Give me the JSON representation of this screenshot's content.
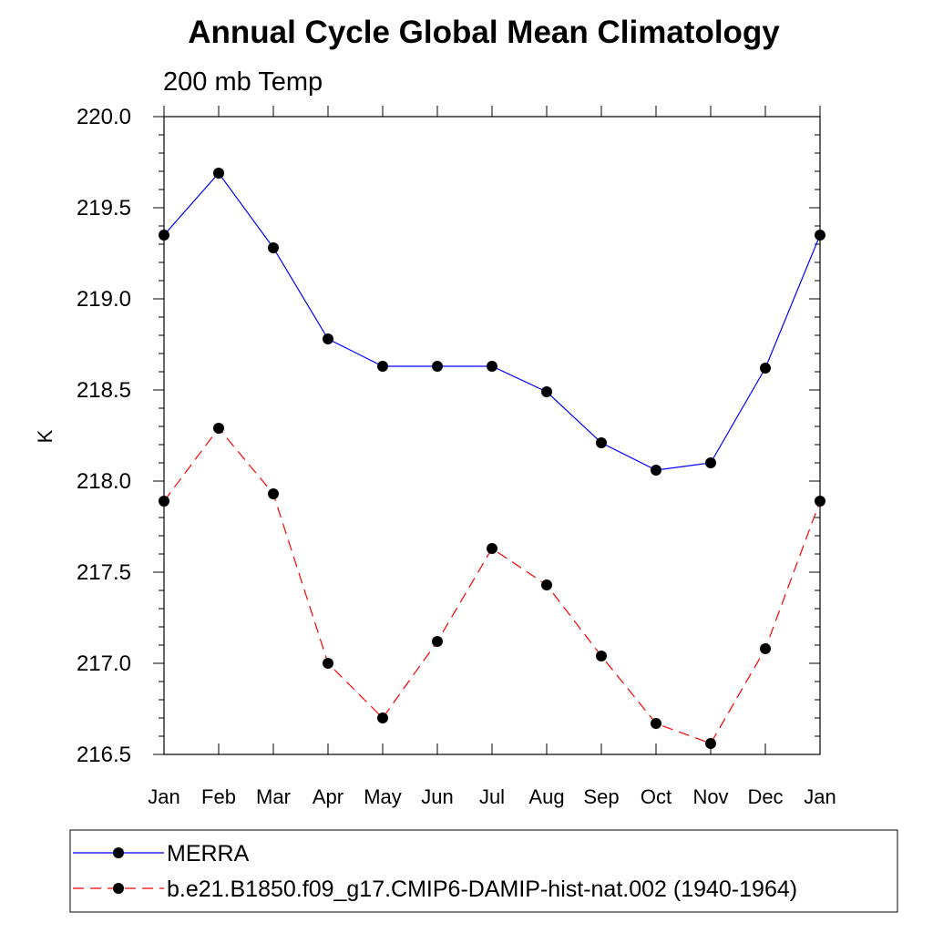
{
  "chart_data": {
    "type": "line",
    "title": "Annual Cycle Global Mean Climatology",
    "subtitle": "200 mb Temp",
    "xlabel": "",
    "ylabel": "K",
    "categories": [
      "Jan",
      "Feb",
      "Mar",
      "Apr",
      "May",
      "Jun",
      "Jul",
      "Aug",
      "Sep",
      "Oct",
      "Nov",
      "Dec",
      "Jan"
    ],
    "ylim": [
      216.5,
      220.0
    ],
    "yticks": [
      216.5,
      217.0,
      217.5,
      218.0,
      218.5,
      219.0,
      219.5,
      220.0
    ],
    "ytick_labels": [
      "216.5",
      "217.0",
      "217.5",
      "218.0",
      "218.5",
      "219.0",
      "219.5",
      "220.0"
    ],
    "grid": false,
    "legend_position": "bottom",
    "series": [
      {
        "name": "MERRA",
        "color": "#0000ff",
        "line_style": "solid",
        "marker": "filled-circle",
        "values": [
          219.35,
          219.69,
          219.28,
          218.78,
          218.63,
          218.63,
          218.63,
          218.49,
          218.21,
          218.06,
          218.1,
          218.62,
          219.35
        ]
      },
      {
        "name": "b.e21.B1850.f09_g17.CMIP6-DAMIP-hist-nat.002 (1940-1964)",
        "color": "#ff0000",
        "line_style": "dashed",
        "marker": "filled-circle",
        "values": [
          217.89,
          218.29,
          217.93,
          217.0,
          216.7,
          217.12,
          217.63,
          217.43,
          217.04,
          216.67,
          216.56,
          217.08,
          217.89
        ]
      }
    ]
  }
}
